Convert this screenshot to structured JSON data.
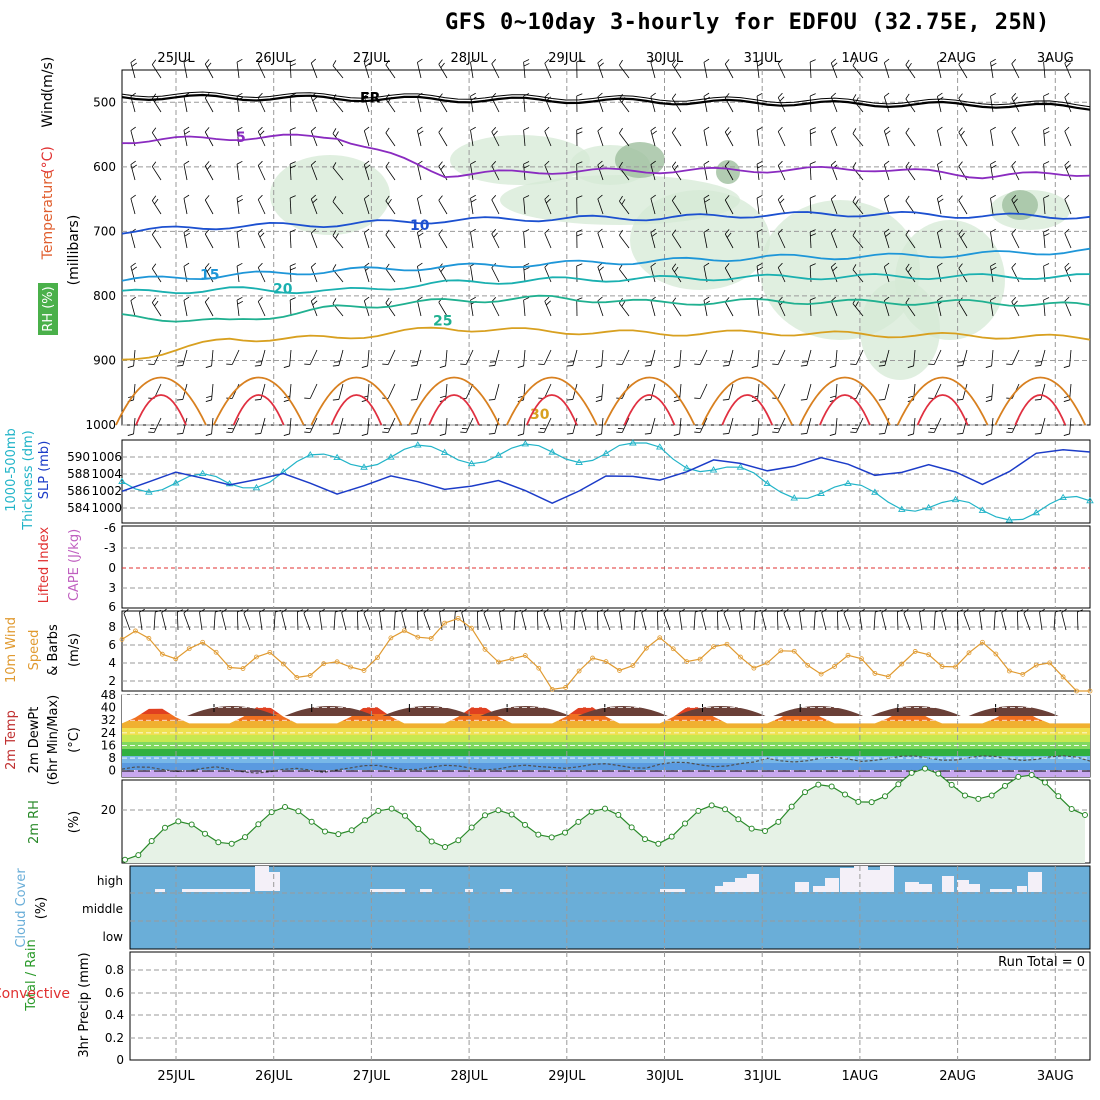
{
  "title": "GFS 0~10day 3-hourly for EDFOU (32.75E, 25N)",
  "dates": [
    "25JUL",
    "26JUL",
    "27JUL",
    "28JUL",
    "29JUL",
    "30JUL",
    "31JUL",
    "1AUG",
    "2AUG",
    "3AUG"
  ],
  "colors": {
    "temp": "#e06030",
    "wind": "#000000",
    "rh": "#2a8a2a",
    "thickness": "#22b4c8",
    "slp": "#1c3cc8",
    "lifted": "#e03030",
    "cape": "#c060c0",
    "wind10": "#e09a30",
    "cloud": "#6aaed8",
    "cloud_white": "#f4f0f8",
    "precip_total": "#2a9a2a",
    "precip_conv": "#e03030"
  },
  "panels": {
    "upper_air": {
      "ylabel_parts": [
        "RH (%)",
        "Temperature",
        "(°C)",
        "Wind",
        "(m/s)"
      ],
      "yaxis_title": "(millibars)",
      "levels": [
        500,
        600,
        700,
        800,
        900,
        1000
      ],
      "contour_labels": [
        "FR",
        "5",
        "10",
        "15",
        "20",
        "25",
        "30"
      ]
    },
    "thickness_slp": {
      "ylabel_parts": [
        "1000-500mb",
        "Thickness (dm)",
        "SLP (mb)"
      ],
      "left_ticks": [
        590,
        588,
        586,
        584
      ],
      "right_ticks": [
        1006,
        1004,
        1002,
        1000
      ]
    },
    "li_cape": {
      "ylabel_parts": [
        "Lifted Index",
        "CAPE (J/kg)"
      ],
      "ticks": [
        "-6",
        "-3",
        "0",
        "3",
        "6"
      ]
    },
    "wind10": {
      "ylabel_parts": [
        "10m Wind",
        "Speed",
        "& Barbs",
        "(m/s)"
      ],
      "ticks": [
        8,
        6,
        4,
        2
      ]
    },
    "temp2m": {
      "ylabel_parts": [
        "2m Temp",
        "2m DewPt",
        "(6hr Min/Max)",
        "(°C)"
      ],
      "ticks": [
        48,
        40,
        32,
        24,
        16,
        8,
        0
      ]
    },
    "rh2m": {
      "ylabel_parts": [
        "2m RH",
        "(%)"
      ],
      "ticks": [
        20
      ]
    },
    "cloud": {
      "ylabel_parts": [
        "Cloud Cover",
        "(%)"
      ],
      "ticks": [
        "high",
        "middle",
        "low"
      ]
    },
    "precip": {
      "ylabel_parts": [
        "Total / Rain",
        "Convective",
        "3hr Precip (mm)"
      ],
      "ticks": [
        "0.8",
        "0.6",
        "0.4",
        "0.2",
        "0"
      ],
      "run_total": "Run Total = 0"
    }
  },
  "chart_data": [
    {
      "type": "line",
      "name": "upper-air temperature contours",
      "x": [
        "25JUL",
        "26JUL",
        "27JUL",
        "28JUL",
        "29JUL",
        "30JUL",
        "31JUL",
        "1AUG",
        "2AUG",
        "3AUG"
      ],
      "ylim": [
        1000,
        450
      ],
      "ylabel": "millibars",
      "series": [
        {
          "name": "FR",
          "values": [
            492,
            493,
            494,
            496,
            497,
            499,
            501,
            503,
            504,
            508
          ]
        },
        {
          "name": "5",
          "values": [
            560,
            555,
            553,
            612,
            607,
            606,
            605,
            603,
            614,
            610
          ]
        },
        {
          "name": "10",
          "values": [
            700,
            692,
            689,
            683,
            680,
            679,
            674,
            673,
            676,
            677
          ]
        },
        {
          "name": "15",
          "values": [
            776,
            768,
            761,
            755,
            750,
            746,
            740,
            739,
            735,
            730
          ]
        },
        {
          "name": "20",
          "values": [
            795,
            790,
            793,
            780,
            775,
            773,
            771,
            770,
            770,
            770
          ]
        },
        {
          "name": "25",
          "values": [
            832,
            840,
            818,
            808,
            803,
            811,
            808,
            810,
            810,
            815
          ]
        },
        {
          "name": "30",
          "values": [
            900,
            867,
            865,
            850,
            855,
            858,
            857,
            860,
            862,
            865
          ]
        }
      ]
    },
    {
      "type": "line",
      "x": [
        "25JUL",
        "26JUL",
        "27JUL",
        "28JUL",
        "29JUL",
        "30JUL",
        "31JUL",
        "1AUG",
        "2AUG",
        "3AUG"
      ],
      "series": [
        {
          "name": "1000-500mb Thickness (dm)",
          "values": [
            587.5,
            587.2,
            590.0,
            590.5,
            590.5,
            591.0,
            587.0,
            586.0,
            584.0,
            585.0
          ]
        },
        {
          "name": "SLP (mb)",
          "values": [
            1002.8,
            1003.5,
            1002.5,
            1003.0,
            1001.5,
            1004.0,
            1005.0,
            1004.5,
            1003.5,
            1007.0
          ]
        }
      ],
      "ylim_left": [
        584,
        591
      ],
      "ylim_right": [
        999,
        1007
      ]
    },
    {
      "type": "line",
      "x": [
        "25JUL",
        "26JUL",
        "27JUL",
        "28JUL",
        "29JUL",
        "30JUL",
        "31JUL",
        "1AUG",
        "2AUG",
        "3AUG"
      ],
      "ylim": [
        -6,
        6
      ],
      "series": [
        {
          "name": "Lifted Index",
          "values": [
            0,
            0,
            0,
            0,
            0,
            0,
            0,
            0,
            0,
            0
          ]
        }
      ]
    },
    {
      "type": "line",
      "x": [
        "25JUL",
        "26JUL",
        "27JUL",
        "28JUL",
        "29JUL",
        "30JUL",
        "31JUL",
        "1AUG",
        "2AUG",
        "3AUG"
      ],
      "ylim": [
        1,
        9
      ],
      "series": [
        {
          "name": "10m Wind Speed",
          "values": [
            6.5,
            4.5,
            3.0,
            8.5,
            2.0,
            5.5,
            4.5,
            3.5,
            5.0,
            1.5
          ]
        }
      ]
    },
    {
      "type": "area",
      "x": [
        "25JUL",
        "26JUL",
        "27JUL",
        "28JUL",
        "29JUL",
        "30JUL",
        "31JUL",
        "1AUG",
        "2AUG",
        "3AUG"
      ],
      "ylim": [
        -4,
        48
      ],
      "series": [
        {
          "name": "2m Temp",
          "values": [
            42,
            43,
            43,
            43,
            43,
            43,
            42,
            41,
            41,
            37
          ]
        },
        {
          "name": "2m DewPt",
          "values": [
            1,
            0,
            2,
            2,
            3,
            4,
            7,
            8,
            8,
            7
          ]
        }
      ]
    },
    {
      "type": "area",
      "x": [
        "25JUL",
        "26JUL",
        "27JUL",
        "28JUL",
        "29JUL",
        "30JUL",
        "31JUL",
        "1AUG",
        "2AUG",
        "3AUG"
      ],
      "ylim": [
        0,
        35
      ],
      "series": [
        {
          "name": "2m RH",
          "values": [
            5,
            11,
            14,
            10,
            13,
            11,
            15,
            24,
            25,
            20
          ]
        }
      ]
    },
    {
      "type": "bar",
      "x": [
        "25JUL",
        "26JUL",
        "27JUL",
        "28JUL",
        "29JUL",
        "30JUL",
        "31JUL",
        "1AUG",
        "2AUG",
        "3AUG"
      ],
      "series": [
        {
          "name": "high cloud",
          "values": [
            0,
            25,
            0,
            0,
            0,
            0,
            25,
            25,
            20,
            25
          ]
        }
      ]
    },
    {
      "type": "bar",
      "x": [
        "25JUL",
        "26JUL",
        "27JUL",
        "28JUL",
        "29JUL",
        "30JUL",
        "31JUL",
        "1AUG",
        "2AUG",
        "3AUG"
      ],
      "ylim": [
        0,
        0.9
      ],
      "series": [
        {
          "name": "3hr Precip",
          "values": [
            0,
            0,
            0,
            0,
            0,
            0,
            0,
            0,
            0,
            0
          ]
        }
      ]
    }
  ]
}
